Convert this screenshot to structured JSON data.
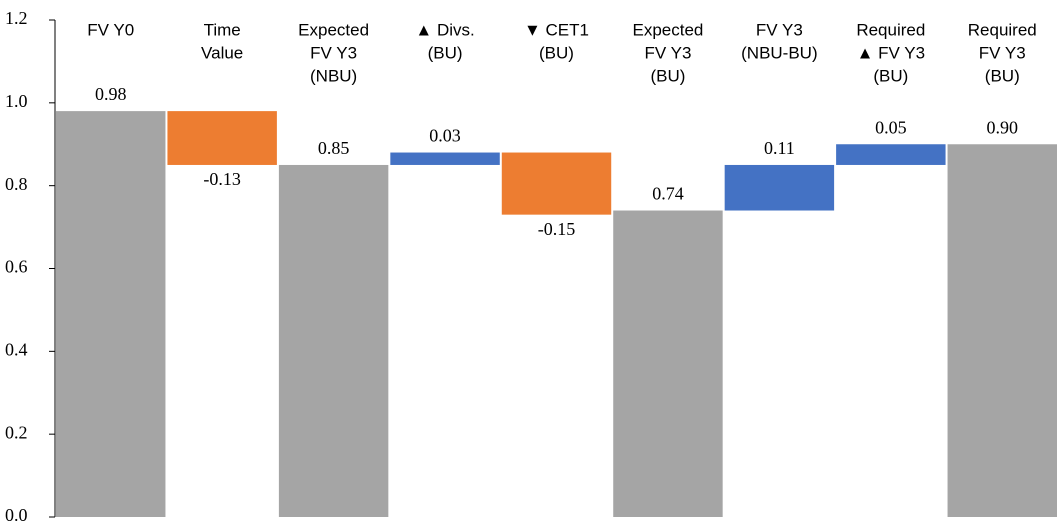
{
  "chart_data": {
    "type": "waterfall",
    "categories": [
      [
        "FV Y0"
      ],
      [
        "Time",
        "Value"
      ],
      [
        "Expected",
        "FV Y3",
        "(NBU)"
      ],
      [
        "▲ Divs.",
        "(BU)"
      ],
      [
        "▼ CET1",
        "(BU)"
      ],
      [
        "Expected",
        "FV Y3",
        "(BU)"
      ],
      [
        "FV Y3",
        "(NBU-BU)"
      ],
      [
        "Required",
        "▲ FV Y3",
        "(BU)"
      ],
      [
        "Required",
        "FV Y3",
        "(BU)"
      ]
    ],
    "values": [
      0.98,
      -0.13,
      0.85,
      0.03,
      -0.15,
      0.74,
      0.11,
      0.05,
      0.9
    ],
    "value_labels": [
      "0.98",
      "-0.13",
      "0.85",
      "0.03",
      "-0.15",
      "0.74",
      "0.11",
      "0.05",
      "0.90"
    ],
    "is_total": [
      true,
      false,
      true,
      false,
      false,
      true,
      false,
      false,
      true
    ],
    "total_color": "#a5a5a5",
    "increase_color": "#4472c4",
    "decrease_color": "#ed7d31",
    "ylim": [
      0,
      1.2
    ],
    "yticks": [
      {
        "value": 0,
        "label": "0.0"
      },
      0.2,
      0.4,
      0.6,
      0.8,
      {
        "value": 1,
        "label": "1.0"
      },
      1.2
    ]
  }
}
